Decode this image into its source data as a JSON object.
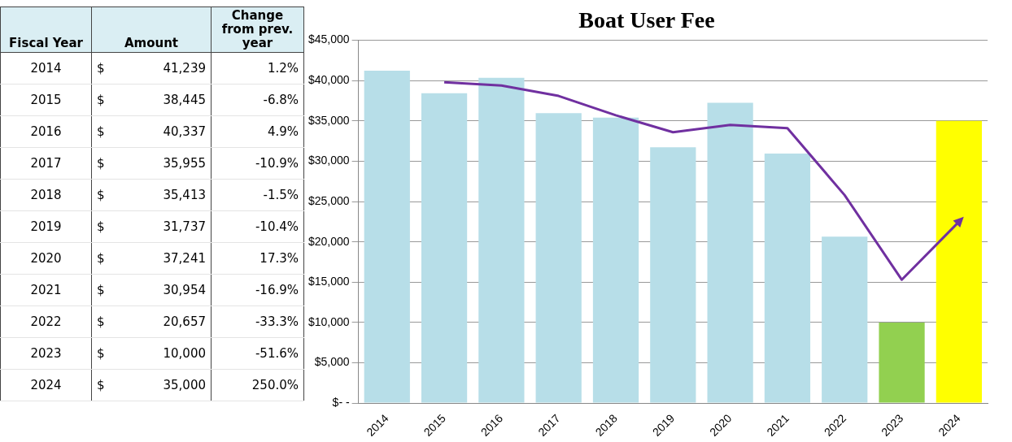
{
  "chart_data": {
    "type": "bar",
    "title": "Boat User Fee",
    "categories": [
      "2014",
      "2015",
      "2016",
      "2017",
      "2018",
      "2019",
      "2020",
      "2021",
      "2022",
      "2023",
      "2024"
    ],
    "series": [
      {
        "colors": [
          "#b7dee8",
          "#b7dee8",
          "#b7dee8",
          "#b7dee8",
          "#b7dee8",
          "#b7dee8",
          "#b7dee8",
          "#b7dee8",
          "#b7dee8",
          "#92d050",
          "#ffff00"
        ],
        "values": [
          41239,
          38445,
          40337,
          35955,
          35413,
          31737,
          37241,
          30954,
          20657,
          10000,
          35000
        ],
        "value_labels": [
          "$ 41,239",
          "$ 38,445",
          "$ 40,337",
          "$ 35,955",
          "$ 35,413",
          "$ 31,737",
          "$ 37,241",
          "$ 30,954",
          "$ 20,657",
          "$ 10,000",
          "$ 35,000"
        ]
      },
      {
        "type": "line",
        "color": "#7030a0",
        "values": [
          null,
          39800,
          39400,
          38100,
          35700,
          33600,
          34500,
          34100,
          25800,
          15300,
          22500
        ]
      }
    ],
    "ylim": [
      0,
      45000
    ],
    "yticks": [
      {
        "value": 0,
        "label": "$- -"
      },
      {
        "value": 5000,
        "label": "$5,000"
      },
      {
        "value": 10000,
        "label": "$10,000"
      },
      {
        "value": 15000,
        "label": "$15,000"
      },
      {
        "value": 20000,
        "label": "$20,000"
      },
      {
        "value": 25000,
        "label": "$25,000"
      },
      {
        "value": 30000,
        "label": "$30,000"
      },
      {
        "value": 35000,
        "label": "$35,000"
      },
      {
        "value": 40000,
        "label": "$40,000"
      },
      {
        "value": 45000,
        "label": "$45,000"
      }
    ],
    "grid": "y",
    "legend": false,
    "marker": "none",
    "line_style": "solid",
    "annotations": [
      "Fiscal Year",
      "Amount",
      "Change from prev. year",
      "1.2%",
      "-6.8%",
      "4.9%",
      "-10.9%",
      "-1.5%",
      "-10.4%",
      "17.3%",
      "-16.9%",
      "-33.3%",
      "-51.6%",
      "250.0%"
    ]
  }
}
